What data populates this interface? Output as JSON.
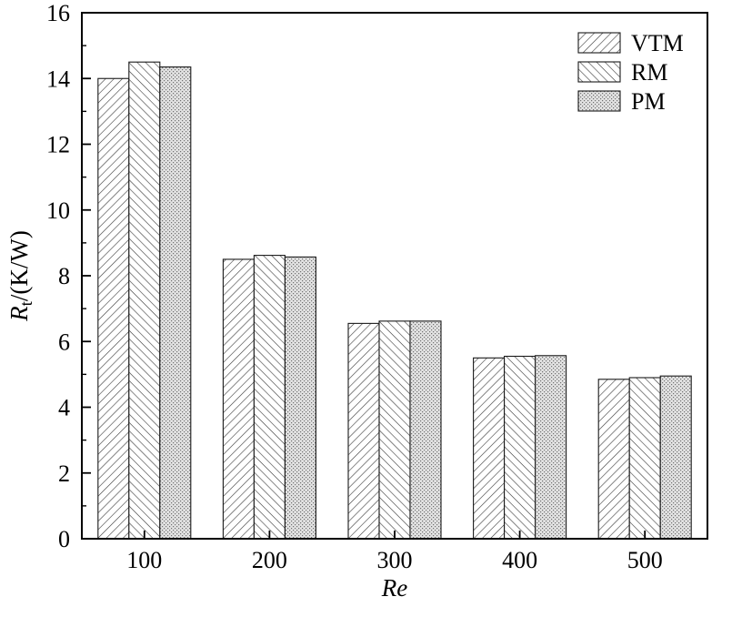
{
  "figure": {
    "background": "#ffffff",
    "axis_color": "#000000",
    "bar_edge_color": "#1a1a1a"
  },
  "chart_data": {
    "type": "bar",
    "title": "",
    "categories": [
      "100",
      "200",
      "300",
      "400",
      "500"
    ],
    "series": [
      {
        "name": "VTM",
        "pattern": "diagonal-forward-hatch",
        "values": [
          14.0,
          8.5,
          6.55,
          5.5,
          4.85
        ]
      },
      {
        "name": "RM",
        "pattern": "diagonal-back-hatch",
        "values": [
          14.5,
          8.62,
          6.62,
          5.55,
          4.9
        ]
      },
      {
        "name": "PM",
        "pattern": "dotted-gray",
        "values": [
          14.35,
          8.57,
          6.62,
          5.57,
          4.95
        ]
      }
    ],
    "xlabel": "Re",
    "ylabel": {
      "text": "Rt/(K/W)",
      "italic_prefix": "R",
      "subscript": "t",
      "rest": "/(K/W)"
    },
    "ylim": [
      0,
      16
    ],
    "ytick_step": 2,
    "ytick_minor_step": 1,
    "yticks": [
      "0",
      "2",
      "4",
      "6",
      "8",
      "10",
      "12",
      "14",
      "16"
    ],
    "grid": false,
    "legend_position": "top-right",
    "legend_entries": [
      "VTM",
      "RM",
      "PM"
    ]
  }
}
